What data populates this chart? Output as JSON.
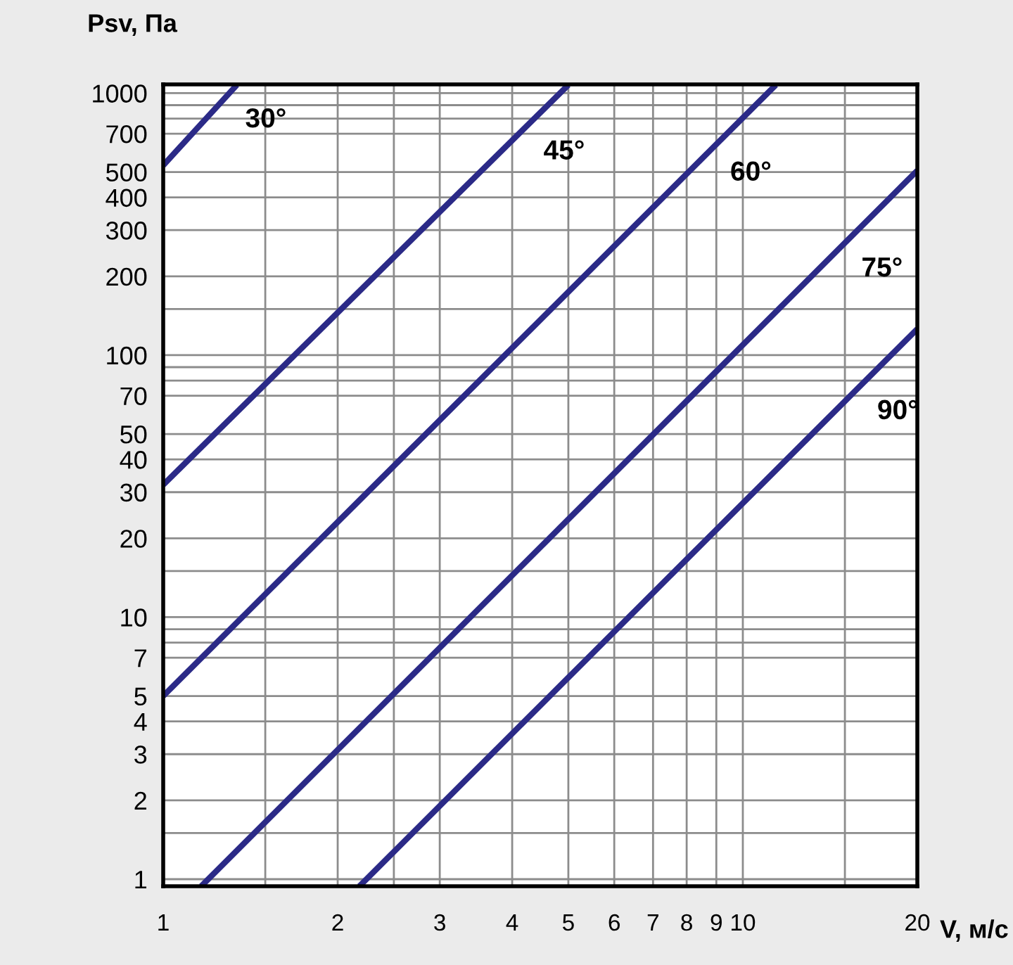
{
  "chart_data": {
    "type": "line",
    "ylabel": "Psv, Па",
    "xlabel": "V, м/с",
    "log": "xy",
    "xlim": [
      1,
      20
    ],
    "ylim": [
      0.94,
      1080
    ],
    "xticks": [
      1,
      {
        "value": 1.5,
        "label": null
      },
      2,
      {
        "value": 2.5,
        "label": null
      },
      3,
      4,
      5,
      6,
      7,
      8,
      9,
      10,
      {
        "value": 15,
        "label": null
      },
      20
    ],
    "yticks": [
      1,
      {
        "value": 1.5,
        "label": null
      },
      2,
      3,
      4,
      5,
      7,
      {
        "value": 8,
        "label": null
      },
      {
        "value": 9,
        "label": null
      },
      10,
      {
        "value": 15,
        "label": null
      },
      20,
      30,
      40,
      50,
      70,
      {
        "value": 80,
        "label": null
      },
      {
        "value": 90,
        "label": null
      },
      100,
      {
        "value": 150,
        "label": null
      },
      200,
      300,
      400,
      500,
      700,
      {
        "value": 800,
        "label": null
      },
      {
        "value": 900,
        "label": null
      },
      1000
    ],
    "grid": true,
    "legend": false,
    "marker": "none",
    "line_style": "solid",
    "series": [
      {
        "name": "30°",
        "color": "#2b2a87",
        "x": [
          1,
          1.34
        ],
        "values": [
          530,
          1075
        ]
      },
      {
        "name": "45°",
        "color": "#2b2a87",
        "x": [
          1,
          5
        ],
        "values": [
          32,
          1075
        ]
      },
      {
        "name": "60°",
        "color": "#2b2a87",
        "x": [
          1,
          11.4
        ],
        "values": [
          5,
          1075
        ]
      },
      {
        "name": "75°",
        "color": "#2b2a87",
        "x": [
          1.163,
          20
        ],
        "values": [
          0.94,
          507
        ]
      },
      {
        "name": "90°",
        "color": "#2b2a87",
        "x": [
          2.18,
          20
        ],
        "values": [
          0.94,
          126
        ]
      }
    ]
  }
}
